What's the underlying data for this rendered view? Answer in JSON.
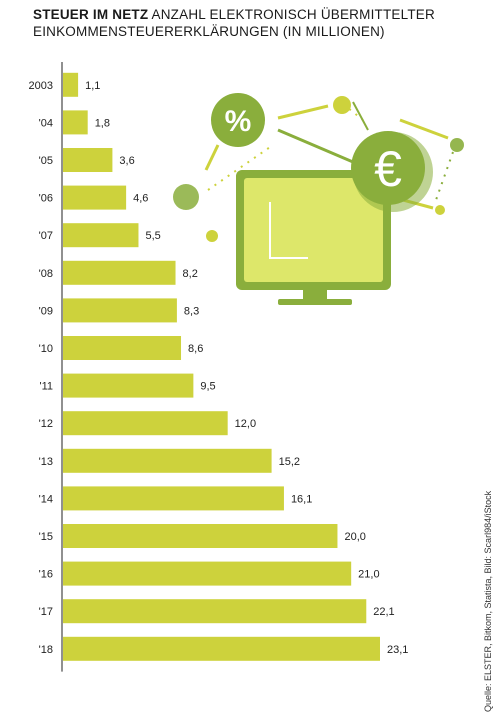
{
  "chart_data": {
    "type": "bar",
    "orientation": "horizontal",
    "title_bold": "STEUER IM NETZ",
    "title": "ANZAHL ELEKTRONISCH ÜBERMITTELTER EINKOMMENSTEUERERKLÄRUNGEN (IN MILLIONEN)",
    "categories": [
      "2003",
      "'04",
      "'05",
      "'06",
      "'07",
      "'08",
      "'09",
      "'10",
      "'11",
      "'12",
      "'13",
      "'14",
      "'15",
      "'16",
      "'17",
      "'18"
    ],
    "values": [
      1.1,
      1.8,
      3.6,
      4.6,
      5.5,
      8.2,
      8.3,
      8.6,
      9.5,
      12.0,
      15.2,
      16.1,
      20.0,
      21.0,
      22.1,
      23.1
    ],
    "value_labels": [
      "1,1",
      "1,8",
      "3,6",
      "4,6",
      "5,5",
      "8,2",
      "8,3",
      "8,6",
      "9,5",
      "12,0",
      "15,2",
      "16,1",
      "20,0",
      "21,0",
      "22,1",
      "23,1"
    ],
    "xlim": [
      0,
      23.1
    ],
    "bar_color": "#cdd23c",
    "grid": false
  },
  "source": "Quelle: ELSTER, Bitkom, Statista, Bild: Scarl984/iStock",
  "illustration": {
    "percent_symbol": "%",
    "euro_symbol": "€",
    "colors": {
      "dark_green": "#8aae3c",
      "light_green": "#cdd23c",
      "screen": "#dde76a"
    }
  }
}
